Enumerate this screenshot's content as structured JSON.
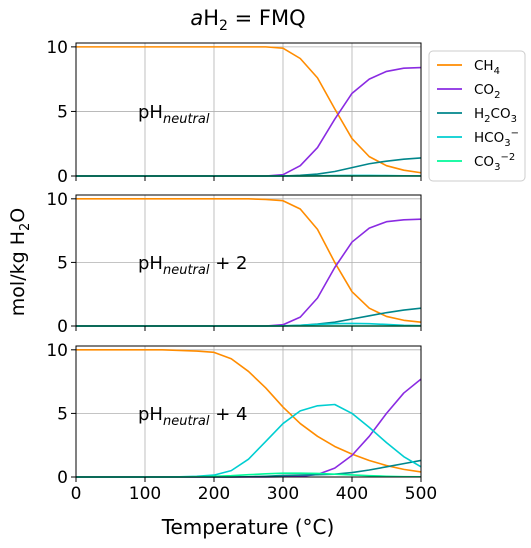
{
  "figure": {
    "title_prefix": "a",
    "title_main": "H",
    "title_sub": "2",
    "title_suffix": " = FMQ",
    "ylabel_main": "mol/kg H",
    "ylabel_sub": "2",
    "ylabel_suffix": "O",
    "xlabel": "Temperature (°C)"
  },
  "colors": {
    "CH4": "#ff8c00",
    "CO2": "#8a2be2",
    "H2CO3": "#00868b",
    "HCO3": "#00ced1",
    "CO3": "#00fa9a",
    "grid": "#b0b0b0"
  },
  "legend": [
    {
      "key": "CH4",
      "base": "CH",
      "sub": "4",
      "sup": ""
    },
    {
      "key": "CO2",
      "base": "CO",
      "sub": "2",
      "sup": ""
    },
    {
      "key": "H2CO3",
      "base": "H",
      "sub": "2",
      "mid": "CO",
      "sub2": "3",
      "sup": ""
    },
    {
      "key": "HCO3",
      "base": "HCO",
      "sub": "3",
      "sup": "−"
    },
    {
      "key": "CO3",
      "base": "CO",
      "sub": "3",
      "sup": "−2"
    }
  ],
  "chart_data": [
    {
      "type": "line",
      "annotation": {
        "base": "pH",
        "sub": "neutral",
        "suffix": ""
      },
      "xlim": [
        0,
        500
      ],
      "ylim": [
        0,
        10.3
      ],
      "xticks": [
        0,
        100,
        200,
        300,
        400,
        500
      ],
      "yticks": [
        0,
        5,
        10
      ],
      "grid": true,
      "show_xtick_labels": false,
      "x": [
        0,
        25,
        50,
        75,
        100,
        125,
        150,
        175,
        200,
        225,
        250,
        275,
        300,
        325,
        350,
        375,
        400,
        425,
        450,
        475,
        500
      ],
      "series": [
        {
          "key": "CH4",
          "values": [
            10.0,
            10.0,
            10.0,
            10.0,
            10.0,
            10.0,
            10.0,
            10.0,
            10.0,
            10.0,
            10.0,
            10.0,
            9.9,
            9.1,
            7.6,
            5.2,
            2.9,
            1.5,
            0.8,
            0.45,
            0.25
          ]
        },
        {
          "key": "CO2",
          "values": [
            0,
            0,
            0,
            0,
            0,
            0,
            0,
            0,
            0,
            0,
            0,
            0,
            0.1,
            0.8,
            2.2,
            4.4,
            6.4,
            7.5,
            8.1,
            8.35,
            8.4
          ]
        },
        {
          "key": "H2CO3",
          "values": [
            0,
            0,
            0,
            0,
            0,
            0,
            0,
            0,
            0,
            0,
            0,
            0,
            0,
            0.05,
            0.15,
            0.35,
            0.65,
            0.95,
            1.15,
            1.3,
            1.4
          ]
        },
        {
          "key": "HCO3",
          "values": [
            0,
            0,
            0,
            0,
            0,
            0,
            0,
            0,
            0,
            0,
            0,
            0,
            0,
            0,
            0.02,
            0.03,
            0.04,
            0.04,
            0.03,
            0.02,
            0.01
          ]
        },
        {
          "key": "CO3",
          "values": [
            0,
            0,
            0,
            0,
            0,
            0,
            0,
            0,
            0,
            0,
            0,
            0,
            0,
            0,
            0,
            0,
            0,
            0,
            0,
            0,
            0
          ]
        }
      ]
    },
    {
      "type": "line",
      "annotation": {
        "base": "pH",
        "sub": "neutral",
        "suffix": " + 2"
      },
      "xlim": [
        0,
        500
      ],
      "ylim": [
        0,
        10.3
      ],
      "xticks": [
        0,
        100,
        200,
        300,
        400,
        500
      ],
      "yticks": [
        0,
        5,
        10
      ],
      "grid": true,
      "show_xtick_labels": false,
      "x": [
        0,
        25,
        50,
        75,
        100,
        125,
        150,
        175,
        200,
        225,
        250,
        275,
        300,
        325,
        350,
        375,
        400,
        425,
        450,
        475,
        500
      ],
      "series": [
        {
          "key": "CH4",
          "values": [
            10.0,
            10.0,
            10.0,
            10.0,
            10.0,
            10.0,
            10.0,
            10.0,
            10.0,
            10.0,
            10.0,
            9.95,
            9.85,
            9.2,
            7.6,
            5.0,
            2.7,
            1.4,
            0.75,
            0.45,
            0.3
          ]
        },
        {
          "key": "CO2",
          "values": [
            0,
            0,
            0,
            0,
            0,
            0,
            0,
            0,
            0,
            0,
            0,
            0,
            0.1,
            0.7,
            2.2,
            4.6,
            6.6,
            7.7,
            8.2,
            8.35,
            8.4
          ]
        },
        {
          "key": "H2CO3",
          "values": [
            0,
            0,
            0,
            0,
            0,
            0,
            0,
            0,
            0,
            0,
            0,
            0,
            0,
            0.05,
            0.15,
            0.3,
            0.55,
            0.8,
            1.05,
            1.25,
            1.4
          ]
        },
        {
          "key": "HCO3",
          "values": [
            0,
            0,
            0,
            0,
            0,
            0,
            0,
            0,
            0,
            0,
            0,
            0,
            0.02,
            0.06,
            0.12,
            0.18,
            0.2,
            0.18,
            0.12,
            0.06,
            0.03
          ]
        },
        {
          "key": "CO3",
          "values": [
            0,
            0,
            0,
            0,
            0,
            0,
            0,
            0,
            0,
            0,
            0,
            0,
            0,
            0,
            0,
            0,
            0,
            0,
            0,
            0,
            0
          ]
        }
      ]
    },
    {
      "type": "line",
      "annotation": {
        "base": "pH",
        "sub": "neutral",
        "suffix": " + 4"
      },
      "xlim": [
        0,
        500
      ],
      "ylim": [
        0,
        10.3
      ],
      "xticks": [
        0,
        100,
        200,
        300,
        400,
        500
      ],
      "yticks": [
        0,
        5,
        10
      ],
      "grid": true,
      "show_xtick_labels": true,
      "x": [
        0,
        25,
        50,
        75,
        100,
        125,
        150,
        175,
        200,
        225,
        250,
        275,
        300,
        325,
        350,
        375,
        400,
        425,
        450,
        475,
        500
      ],
      "series": [
        {
          "key": "CH4",
          "values": [
            10.0,
            10.0,
            10.0,
            10.0,
            10.0,
            10.0,
            9.95,
            9.9,
            9.8,
            9.3,
            8.3,
            7.0,
            5.5,
            4.2,
            3.2,
            2.4,
            1.8,
            1.3,
            0.9,
            0.6,
            0.4
          ]
        },
        {
          "key": "CO2",
          "values": [
            0,
            0,
            0,
            0,
            0,
            0,
            0,
            0,
            0,
            0,
            0,
            0,
            0.02,
            0.05,
            0.2,
            0.7,
            1.7,
            3.2,
            5.0,
            6.6,
            7.7
          ]
        },
        {
          "key": "H2CO3",
          "values": [
            0,
            0,
            0,
            0,
            0,
            0,
            0,
            0,
            0,
            0,
            0.02,
            0.06,
            0.12,
            0.15,
            0.18,
            0.22,
            0.35,
            0.55,
            0.8,
            1.05,
            1.3
          ]
        },
        {
          "key": "HCO3",
          "values": [
            0,
            0,
            0,
            0,
            0,
            0,
            0.02,
            0.05,
            0.15,
            0.5,
            1.4,
            2.8,
            4.2,
            5.2,
            5.6,
            5.7,
            5.0,
            3.9,
            2.7,
            1.6,
            0.8
          ]
        },
        {
          "key": "CO3",
          "values": [
            0,
            0,
            0,
            0,
            0,
            0,
            0,
            0.02,
            0.05,
            0.1,
            0.18,
            0.25,
            0.3,
            0.3,
            0.28,
            0.22,
            0.16,
            0.1,
            0.06,
            0.03,
            0.02
          ]
        }
      ]
    }
  ]
}
